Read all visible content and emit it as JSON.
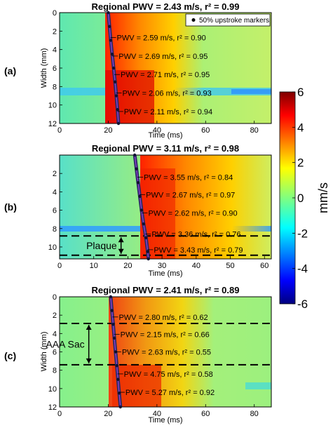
{
  "colorbar": {
    "min": -6,
    "max": 6,
    "ticks": [
      6,
      4,
      2,
      0,
      -2,
      -4,
      -6
    ],
    "label": "mm/s"
  },
  "panels": [
    {
      "tag": "(a)",
      "title": "Regional PWV = 2.43 m/s, r² = 0.99",
      "xlabel": "Time (ms)",
      "ylabel": "Width (mm)",
      "xlim": [
        0,
        87
      ],
      "ylim": [
        0,
        12
      ],
      "xticks": [
        0,
        20,
        40,
        60,
        80
      ],
      "yticks": [
        0,
        2,
        4,
        6,
        8,
        10,
        12
      ],
      "legend": "50% upstroke markers",
      "front": [
        [
          20.0,
          0
        ],
        [
          20.5,
          1.5
        ],
        [
          21.0,
          3
        ],
        [
          21.6,
          4.5
        ],
        [
          22.2,
          6
        ],
        [
          22.8,
          7.5
        ],
        [
          23.3,
          9
        ],
        [
          23.8,
          10.5
        ],
        [
          24.2,
          12
        ]
      ],
      "annotations": [
        {
          "text": "PWV = 2.59 m/s, r² = 0.90",
          "y": 2.7
        },
        {
          "text": "PWV = 2.69 m/s, r² = 0.95",
          "y": 4.7
        },
        {
          "text": "PWV = 2.71 m/s, r² = 0.95",
          "y": 6.7
        },
        {
          "text": "PWV = 2.06 m/s, r² = 0.93",
          "y": 8.7
        },
        {
          "text": "PWV = 2.11 m/s, r² = 0.94",
          "y": 10.7
        }
      ],
      "boundaries": [],
      "bracket": null
    },
    {
      "tag": "(b)",
      "title": "Regional PWV = 3.11 m/s,  r² = 0.98",
      "xlabel": "Time (ms)",
      "ylabel": "",
      "xlim": [
        0,
        62
      ],
      "ylim": [
        0,
        11.3
      ],
      "xticks": [
        0,
        10,
        20,
        30,
        40,
        50,
        60
      ],
      "yticks": [
        2,
        4,
        6,
        8,
        10
      ],
      "legend": "",
      "front": [
        [
          22.0,
          0
        ],
        [
          22.5,
          1.5
        ],
        [
          23.0,
          3
        ],
        [
          23.5,
          4.5
        ],
        [
          24.0,
          6
        ],
        [
          24.6,
          7.5
        ],
        [
          25.3,
          9
        ],
        [
          25.8,
          10.5
        ],
        [
          26.0,
          11.3
        ]
      ],
      "annotations": [
        {
          "text": "PWV = 3.55 m/s, r² = 0.84",
          "y": 2.4
        },
        {
          "text": "PWV = 2.67 m/s, r² = 0.97",
          "y": 4.3
        },
        {
          "text": "PWV = 2.62 m/s, r² = 0.90",
          "y": 6.3
        },
        {
          "text": "PWV = 3.36 m/s, r² = 0.76",
          "y": 8.6
        },
        {
          "text": "PWV = 3.43 m/s, r² = 0.79",
          "y": 10.3
        }
      ],
      "boundaries": [
        8.8,
        10.9
      ],
      "bracket": {
        "text": "Plaque",
        "x": 18
      }
    },
    {
      "tag": "(c)",
      "title": "Regional PWV = 2.41 m/s, r² = 0.89",
      "xlabel": "Time (ms)",
      "ylabel": "Width (mm)",
      "xlim": [
        0,
        87
      ],
      "ylim": [
        0,
        12
      ],
      "xticks": [
        0,
        20,
        40,
        60,
        80
      ],
      "yticks": [
        0,
        2,
        4,
        6,
        8,
        10,
        12
      ],
      "legend": "",
      "front": [
        [
          21.0,
          0
        ],
        [
          21.5,
          1.5
        ],
        [
          22.0,
          3
        ],
        [
          22.5,
          4.5
        ],
        [
          23.0,
          6
        ],
        [
          23.5,
          7.5
        ],
        [
          24.0,
          9
        ],
        [
          24.5,
          10.5
        ],
        [
          25.0,
          12
        ]
      ],
      "annotations": [
        {
          "text": "PWV = 2.80 m/s, r² = 0.62",
          "y": 2.2
        },
        {
          "text": "PWV = 2.15 m/s, r² = 0.66",
          "y": 4.1
        },
        {
          "text": "PWV = 2.63 m/s, r² = 0.55",
          "y": 6.0
        },
        {
          "text": "PWV = 4.75 m/s, r² = 0.58",
          "y": 8.4
        },
        {
          "text": "PWV = 5.27 m/s, r² = 0.92",
          "y": 10.4
        }
      ],
      "boundaries": [
        2.9,
        7.4
      ],
      "bracket": {
        "text": "AAA Sac",
        "x": 12
      }
    }
  ],
  "chart_data": [
    {
      "type": "heatmap",
      "title": "Regional PWV = 2.43 m/s, r² = 0.99",
      "xlabel": "Time (ms)",
      "ylabel": "Width (mm)",
      "xlim": [
        0,
        87
      ],
      "ylim": [
        12,
        0
      ],
      "colorbar": {
        "label": "mm/s",
        "range": [
          -6,
          6
        ]
      },
      "series": [
        {
          "name": "50% upstroke markers",
          "x": [
            20.0,
            20.5,
            21.0,
            21.6,
            22.2,
            22.8,
            23.3,
            23.8,
            24.2
          ],
          "y": [
            0,
            1.5,
            3,
            4.5,
            6,
            7.5,
            9,
            10.5,
            12
          ]
        }
      ],
      "segments": [
        {
          "pwv": 2.59,
          "r2": 0.9
        },
        {
          "pwv": 2.69,
          "r2": 0.95
        },
        {
          "pwv": 2.71,
          "r2": 0.95
        },
        {
          "pwv": 2.06,
          "r2": 0.93
        },
        {
          "pwv": 2.11,
          "r2": 0.94
        }
      ],
      "regional": {
        "pwv": 2.43,
        "r2": 0.99
      }
    },
    {
      "type": "heatmap",
      "title": "Regional PWV = 3.11 m/s,  r² = 0.98",
      "xlabel": "Time (ms)",
      "ylabel": "",
      "xlim": [
        0,
        62
      ],
      "ylim": [
        11.3,
        0
      ],
      "colorbar": {
        "label": "mm/s",
        "range": [
          -6,
          6
        ]
      },
      "series": [
        {
          "x": [
            22.0,
            22.5,
            23.0,
            23.5,
            24.0,
            24.6,
            25.3,
            25.8,
            26.0
          ],
          "y": [
            0,
            1.5,
            3,
            4.5,
            6,
            7.5,
            9,
            10.5,
            11.3
          ]
        }
      ],
      "segments": [
        {
          "pwv": 3.55,
          "r2": 0.84
        },
        {
          "pwv": 2.67,
          "r2": 0.97
        },
        {
          "pwv": 2.62,
          "r2": 0.9
        },
        {
          "pwv": 3.36,
          "r2": 0.76
        },
        {
          "pwv": 3.43,
          "r2": 0.79
        }
      ],
      "region": {
        "name": "Plaque",
        "y": [
          8.8,
          10.9
        ]
      },
      "regional": {
        "pwv": 3.11,
        "r2": 0.98
      }
    },
    {
      "type": "heatmap",
      "title": "Regional PWV = 2.41 m/s, r² = 0.89",
      "xlabel": "Time (ms)",
      "ylabel": "Width (mm)",
      "xlim": [
        0,
        87
      ],
      "ylim": [
        12,
        0
      ],
      "colorbar": {
        "label": "mm/s",
        "range": [
          -6,
          6
        ]
      },
      "series": [
        {
          "x": [
            21.0,
            21.5,
            22.0,
            22.5,
            23.0,
            23.5,
            24.0,
            24.5,
            25.0
          ],
          "y": [
            0,
            1.5,
            3,
            4.5,
            6,
            7.5,
            9,
            10.5,
            12
          ]
        }
      ],
      "segments": [
        {
          "pwv": 2.8,
          "r2": 0.62
        },
        {
          "pwv": 2.15,
          "r2": 0.66
        },
        {
          "pwv": 2.63,
          "r2": 0.55
        },
        {
          "pwv": 4.75,
          "r2": 0.58
        },
        {
          "pwv": 5.27,
          "r2": 0.92
        }
      ],
      "region": {
        "name": "AAA Sac",
        "y": [
          2.9,
          7.4
        ]
      },
      "regional": {
        "pwv": 2.41,
        "r2": 0.89
      }
    }
  ]
}
